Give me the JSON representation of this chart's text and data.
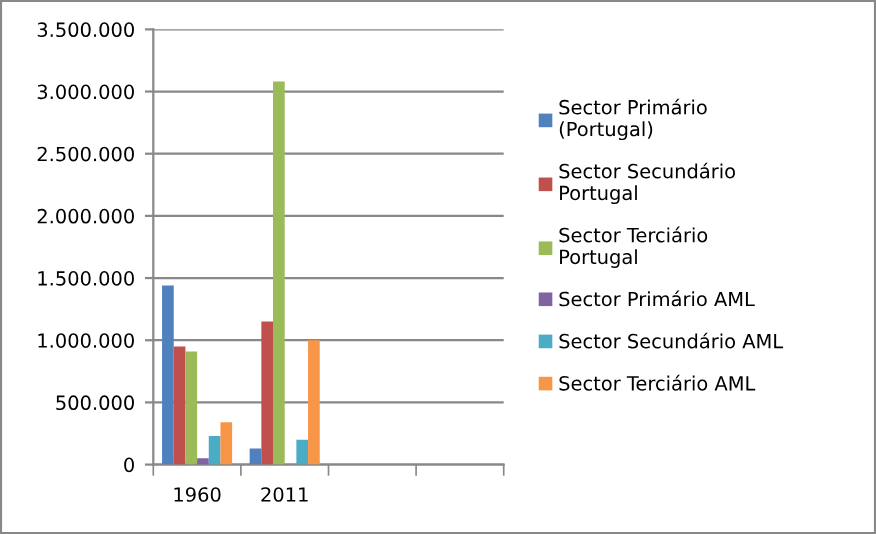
{
  "chart_data": {
    "type": "bar",
    "categories": [
      "1960",
      "2011",
      null,
      null
    ],
    "series": [
      {
        "name": "Sector Primário\n(Portugal)",
        "color": "#4f81bd",
        "values": [
          1440000,
          130000,
          null,
          null
        ]
      },
      {
        "name": "Sector Secundário\nPortugal",
        "color": "#c0504d",
        "values": [
          950000,
          1150000,
          null,
          null
        ]
      },
      {
        "name": "Sector Terciário\nPortugal",
        "color": "#9bbb59",
        "values": [
          910000,
          3080000,
          null,
          null
        ]
      },
      {
        "name": "Sector Primário AML",
        "color": "#8064a2",
        "values": [
          50000,
          0,
          null,
          null
        ]
      },
      {
        "name": "Sector Secundário AML",
        "color": "#4bacc6",
        "values": [
          230000,
          200000,
          null,
          null
        ]
      },
      {
        "name": "Sector Terciário AML",
        "color": "#f79646",
        "values": [
          340000,
          1000000,
          null,
          null
        ]
      }
    ],
    "ylim": [
      0,
      3500000
    ],
    "yticks": [
      {
        "value": 0,
        "label": "0"
      },
      {
        "value": 500000,
        "label": "500.000"
      },
      {
        "value": 1000000,
        "label": "1.000.000"
      },
      {
        "value": 1500000,
        "label": "1.500.000"
      },
      {
        "value": 2000000,
        "label": "2.000.000"
      },
      {
        "value": 2500000,
        "label": "2.500.000"
      },
      {
        "value": 3000000,
        "label": "3.000.000"
      },
      {
        "value": 3500000,
        "label": "3.500.000"
      }
    ],
    "grid": "y",
    "legend": "right"
  }
}
